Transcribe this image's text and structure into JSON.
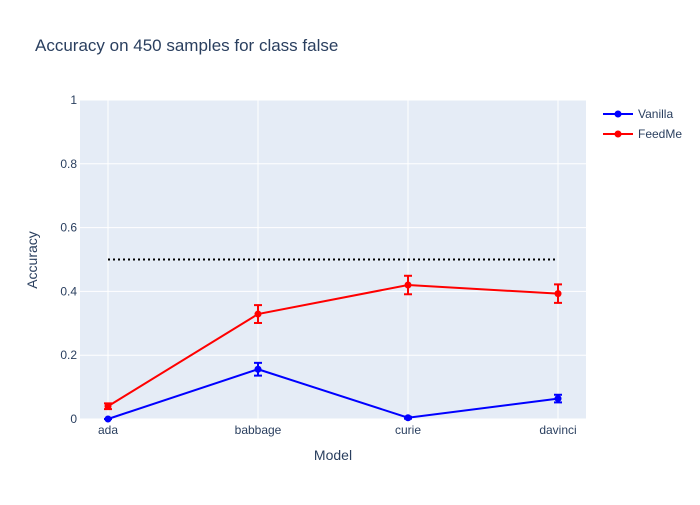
{
  "chart_data": {
    "type": "line",
    "title": "Accuracy on 450 samples for class  false",
    "xlabel": "Model",
    "ylabel": "Accuracy",
    "categories": [
      "ada",
      "babbage",
      "curie",
      "davinci"
    ],
    "ylim": [
      0,
      1
    ],
    "yticks": [
      0,
      0.2,
      0.4,
      0.6,
      0.8,
      1
    ],
    "ytick_labels": [
      "0",
      "0.2",
      "0.4",
      "0.6",
      "0.8",
      "1"
    ],
    "grid": true,
    "legend_position": "top-right",
    "series": [
      {
        "name": "Vanilla",
        "color": "#0000ff",
        "values": [
          0.0,
          0.156,
          0.004,
          0.064
        ],
        "errors": [
          0.0,
          0.02,
          0.003,
          0.012
        ]
      },
      {
        "name": "FeedMe",
        "color": "#ff0000",
        "values": [
          0.04,
          0.329,
          0.42,
          0.393
        ],
        "errors": [
          0.009,
          0.028,
          0.029,
          0.029
        ]
      }
    ],
    "reference_line": {
      "y": 0.5,
      "style": "dotted",
      "color": "#000000"
    }
  }
}
